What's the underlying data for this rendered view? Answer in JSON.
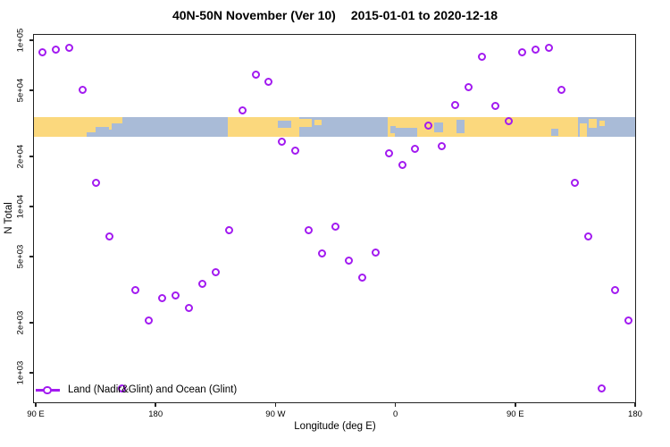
{
  "title": {
    "zone_and_version": "40N-50N November (Ver 10)",
    "date_range": "2015-01-01 to 2020-12-18"
  },
  "legend": {
    "label": "Land (Nadir&Glint) and Ocean (Glint)"
  },
  "colors": {
    "marker_purple": "#A21AF0",
    "land_orange": "#FBD87D",
    "ocean_blue": "#A9BBD7",
    "axis_black": "#222222",
    "background": "#FFFFFF"
  },
  "chart_data": {
    "type": "scatter",
    "title": "40N-50N November (Ver 10)   2015-01-01 to 2020-12-18",
    "xlabel": "Longitude (deg E)",
    "ylabel": "N Total",
    "y_scale": "log10",
    "ylim": [
      700,
      120000
    ],
    "x_axis_wraps_globe": "axis runs 90E eastward 450 degrees to 180 (values 90 to 540)",
    "grid": false,
    "legend_position": "bottom-left inside plot",
    "x_ticks": [
      {
        "label": "90 E",
        "deg": 90
      },
      {
        "label": "180",
        "deg": 180
      },
      {
        "label": "90 W",
        "deg": 270
      },
      {
        "label": "0",
        "deg": 360
      },
      {
        "label": "90 E",
        "deg": 450
      },
      {
        "label": "180",
        "deg": 540
      }
    ],
    "y_ticks": [
      {
        "label": "1e+03",
        "value": 1000
      },
      {
        "label": "2e+03",
        "value": 2000
      },
      {
        "label": "5e+03",
        "value": 5000
      },
      {
        "label": "1e+04",
        "value": 10000
      },
      {
        "label": "2e+04",
        "value": 20000
      },
      {
        "label": "5e+04",
        "value": 50000
      },
      {
        "label": "1e+05",
        "value": 100000
      }
    ],
    "points_format": [
      "axis_deg",
      "n_total"
    ],
    "series": [
      {
        "name": "Land (Nadir&Glint) and Ocean (Glint)",
        "marker": "open-circle",
        "points": [
          [
            95,
            85000
          ],
          [
            105,
            88000
          ],
          [
            115,
            89500
          ],
          [
            125,
            50000
          ],
          [
            135,
            13800
          ],
          [
            145,
            6600
          ],
          [
            155,
            810
          ],
          [
            165,
            3150
          ],
          [
            175,
            2070
          ],
          [
            185,
            2820
          ],
          [
            195,
            2920
          ],
          [
            205,
            2450
          ],
          [
            215,
            3430
          ],
          [
            225,
            4050
          ],
          [
            235,
            7200
          ],
          [
            245,
            38000
          ],
          [
            255,
            62000
          ],
          [
            265,
            56000
          ],
          [
            275,
            24500
          ],
          [
            285,
            21800
          ],
          [
            295,
            7200
          ],
          [
            305,
            5250
          ],
          [
            315,
            7600
          ],
          [
            325,
            4700
          ],
          [
            335,
            3760
          ],
          [
            345,
            5300
          ],
          [
            355,
            21000
          ],
          [
            365,
            17800
          ],
          [
            375,
            22300
          ],
          [
            385,
            30600
          ],
          [
            395,
            23200
          ],
          [
            405,
            40700
          ],
          [
            415,
            52300
          ],
          [
            425,
            80000
          ],
          [
            435,
            40500
          ],
          [
            445,
            32500
          ],
          [
            455,
            85000
          ],
          [
            465,
            88000
          ],
          [
            475,
            89500
          ],
          [
            485,
            50000
          ],
          [
            495,
            13800
          ],
          [
            505,
            6600
          ],
          [
            515,
            810
          ],
          [
            525,
            3150
          ],
          [
            535,
            2070
          ]
        ]
      }
    ],
    "map_band": {
      "description": "horizontal world-map strip of the 40N-50N zone; orange = land, blue = ocean",
      "n_top": 34500,
      "n_bottom": 26100,
      "land_segments": [
        {
          "from": 88,
          "to": 138,
          "top": 0,
          "bottom": 1
        },
        {
          "from": 138,
          "to": 147,
          "top": 0,
          "bottom": 0.62
        },
        {
          "from": 147,
          "to": 155,
          "top": 0,
          "bottom": 0.3
        },
        {
          "from": 234,
          "to": 288,
          "top": 0,
          "bottom": 1
        },
        {
          "from": 288,
          "to": 297,
          "top": 0.1,
          "bottom": 0.5
        },
        {
          "from": 299.5,
          "to": 304.5,
          "top": 0.15,
          "bottom": 0.4
        },
        {
          "from": 354,
          "to": 497,
          "top": 0,
          "bottom": 1
        },
        {
          "from": 498.5,
          "to": 503.5,
          "top": 0.3,
          "bottom": 1
        },
        {
          "from": 505,
          "to": 511.5,
          "top": 0.1,
          "bottom": 0.55
        },
        {
          "from": 513,
          "to": 517,
          "top": 0.2,
          "bottom": 0.45
        }
      ],
      "ocean_patches": [
        {
          "from": 128,
          "to": 135,
          "top": 0.75,
          "bottom": 1
        },
        {
          "from": 135,
          "to": 145,
          "top": 0.5,
          "bottom": 1
        },
        {
          "from": 272,
          "to": 281.5,
          "top": 0.2,
          "bottom": 0.55
        },
        {
          "from": 356,
          "to": 360,
          "top": 0.45,
          "bottom": 0.8
        },
        {
          "from": 359.5,
          "to": 376.5,
          "top": 0.55,
          "bottom": 1
        },
        {
          "from": 389,
          "to": 395.5,
          "top": 0.28,
          "bottom": 0.75
        },
        {
          "from": 406,
          "to": 412,
          "top": 0.15,
          "bottom": 0.8
        },
        {
          "from": 477,
          "to": 482.5,
          "top": 0.6,
          "bottom": 0.95
        }
      ]
    }
  }
}
